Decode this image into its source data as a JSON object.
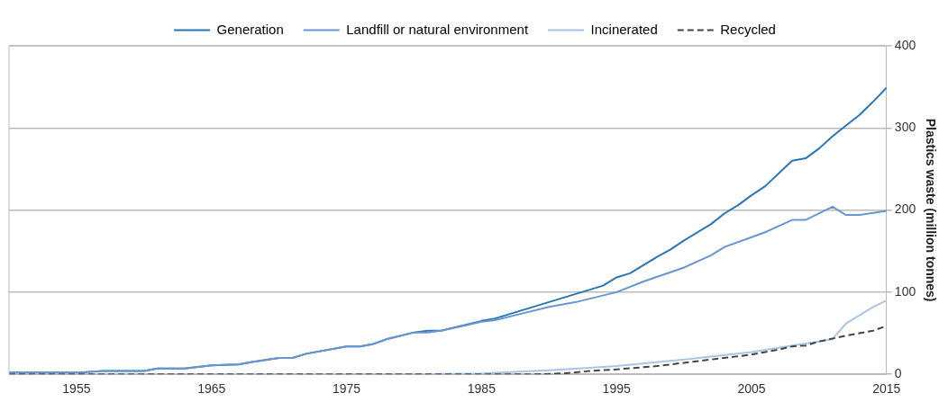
{
  "chart_data": {
    "type": "line",
    "ylabel": "Plastics waste (million tonnes)",
    "xlim": [
      1950,
      2015
    ],
    "xticks": [
      1955,
      1965,
      1975,
      1985,
      1995,
      2005,
      2015
    ],
    "ylim": [
      0,
      400
    ],
    "yticks": [
      0,
      100,
      200,
      300,
      400
    ],
    "grid": "y",
    "legend": "top",
    "marker": "none",
    "series": [
      {
        "name": "Generation",
        "color": "#2a76b4",
        "line_style": "solid",
        "x": [
          1950,
          1955,
          1957,
          1960,
          1961,
          1963,
          1965,
          1967,
          1968,
          1970,
          1971,
          1972,
          1975,
          1976,
          1977,
          1978,
          1980,
          1981,
          1982,
          1985,
          1986,
          1990,
          1994,
          1995,
          1996,
          1998,
          1999,
          2000,
          2002,
          2003,
          2004,
          2005,
          2006,
          2008,
          2009,
          2010,
          2011,
          2012,
          2013,
          2014,
          2015
        ],
        "values": [
          2,
          2,
          4,
          4,
          7,
          7,
          11,
          12,
          15,
          20,
          20,
          25,
          34,
          34,
          37,
          43,
          51,
          53,
          53,
          65,
          68,
          88,
          108,
          118,
          123,
          143,
          152,
          163,
          183,
          196,
          206,
          218,
          229,
          260,
          263,
          275,
          290,
          303,
          316,
          332,
          349
        ]
      },
      {
        "name": "Landfill or natural environment",
        "color": "#6a96cf",
        "line_style": "solid",
        "x": [
          1950,
          1955,
          1957,
          1960,
          1961,
          1963,
          1965,
          1967,
          1968,
          1970,
          1971,
          1972,
          1975,
          1976,
          1977,
          1978,
          1980,
          1981,
          1982,
          1985,
          1986,
          1988,
          1990,
          1992,
          1995,
          1997,
          2000,
          2002,
          2003,
          2005,
          2006,
          2008,
          2009,
          2011,
          2012,
          2013,
          2015
        ],
        "values": [
          2,
          2,
          4,
          4,
          7,
          7,
          11,
          12,
          15,
          20,
          20,
          25,
          34,
          34,
          37,
          43,
          51,
          51,
          53,
          64,
          66,
          74,
          82,
          88,
          100,
          113,
          130,
          145,
          155,
          167,
          173,
          188,
          188,
          204,
          194,
          194,
          199
        ]
      },
      {
        "name": "Incinerated",
        "color": "#a9c4e4",
        "line_style": "solid",
        "x": [
          1950,
          1980,
          1985,
          1990,
          1993,
          1995,
          2000,
          2005,
          2008,
          2010,
          2011,
          2012,
          2014,
          2015
        ],
        "values": [
          0,
          0,
          1,
          5,
          8,
          10,
          18,
          27,
          35,
          40,
          43,
          62,
          82,
          90
        ]
      },
      {
        "name": "Recycled",
        "color": "#444444",
        "line_style": "dashed",
        "x": [
          1950,
          1989,
          1991,
          1993,
          1995,
          1998,
          2000,
          2002,
          2005,
          2007,
          2008,
          2009,
          2010,
          2012,
          2014,
          2015
        ],
        "values": [
          0,
          0,
          1,
          4,
          6,
          10,
          14,
          18,
          24,
          30,
          34,
          35,
          40,
          47,
          53,
          59
        ]
      }
    ]
  }
}
